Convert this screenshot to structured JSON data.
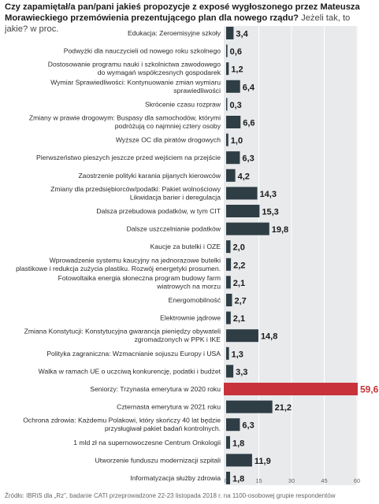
{
  "header": {
    "question": "Czy zapamiętał/a pan/pani jakieś propozycje z exposé wygłoszonego przez Mateusza Morawieckiego przemówienia prezentującego plan dla nowego rządu?",
    "subtitle": "Jeżeli tak, to jakie? w proc."
  },
  "footer": {
    "source": "Źródło: IBRiS dla „Rz”, badanie CATI przeprowadzone 22-23 listopada 2018 r. na 1100-osobowej grupie respondentów"
  },
  "colors": {
    "bar": "#2f3d45",
    "highlight": "#c8323a",
    "panel": "#e8eaec",
    "grid": "#ffffff"
  },
  "chart_data": {
    "type": "bar",
    "orientation": "horizontal",
    "categories": [
      "Edukacja: Zeroemisyjne szkoły",
      "Podwyżki dla nauczycieli od nowego roku szkolnego",
      "Dostosowanie programu nauki i szkolnictwa zawodowego|do wymagań współczesnych gospodarek",
      "Wymiar Sprawiedliwości: Kontynuowanie zmian wymiaru|sprawiedliwości",
      "Skrócenie czasu rozpraw",
      "Zmiany w prawie drogowym: Buspasy dla samochodów, którymi|podróżują co najmniej cztery osoby",
      "Wyższe OC dla piratów drogowych",
      "Pierwszeństwo pieszych jeszcze przed wejściem na przejście",
      "Zaostrzenie polityki karania pijanych kierowców",
      "Zmiany dla przedsiębiorców/podatki: Pakiet wolnościowy|Likwidacja barier i deregulacja",
      "Dalsza przebudowa podatków, w tym CIT",
      "Dalsze uszczelnianie podatków",
      "Kaucje za butelki i OZE",
      "Wprowadzenie systemu kaucyjny na jednorazowe butelki|plastikowe i redukcja zużycia plastiku. Rozwój energetyki prosumen.",
      "Fotowoltaika energia słoneczna program budowy farm|wiatrowych na morzu",
      "Energomobilność",
      "Elektrownie jądrowe",
      "Zmiana Konstytucji: Konstytucyjna gwarancja pieniędzy obywateli|zgromadzonych w PPK i IKE",
      "Polityka zagraniczna: Wzmacnianie sojuszu Europy i USA",
      "Walka w ramach UE o uczciwą konkurencję, podatki i budżet",
      "Seniorzy: Trzynasta emerytura w 2020 roku",
      "Czternasta emerytura w 2021 roku",
      "Ochrona zdrowia: Każdemu Polakowi, który skończy 40 lat będzie|przysługiwał pakiet badań kontrolnych.",
      "1 mld zł na supernowoczesne Centrum Onkologii",
      "Utworzenie funduszu modernizacji szpitali",
      "Informatyzacja służby zdrowia"
    ],
    "values": [
      3.4,
      0.6,
      1.2,
      6.4,
      0.3,
      6.6,
      1.0,
      6.3,
      4.2,
      14.3,
      15.3,
      19.8,
      2.0,
      2.2,
      2.1,
      2.7,
      2.1,
      14.8,
      1.3,
      3.3,
      59.6,
      21.2,
      6.3,
      1.8,
      11.9,
      1.8
    ],
    "value_labels": [
      "3,4",
      "0,6",
      "1,2",
      "6,4",
      "0,3",
      "6,6",
      "1,0",
      "6,3",
      "4,2",
      "14,3",
      "15,3",
      "19,8",
      "2,0",
      "2,2",
      "2,1",
      "2,7",
      "2,1",
      "14,8",
      "1,3",
      "3,3",
      "59,6",
      "21,2",
      "6,3",
      "1,8",
      "11,9",
      "1,8"
    ],
    "highlight_index": 20,
    "xlim": [
      0,
      60
    ],
    "xticks": [
      0,
      15,
      30,
      45,
      60
    ],
    "grid": true,
    "legend": "none"
  }
}
